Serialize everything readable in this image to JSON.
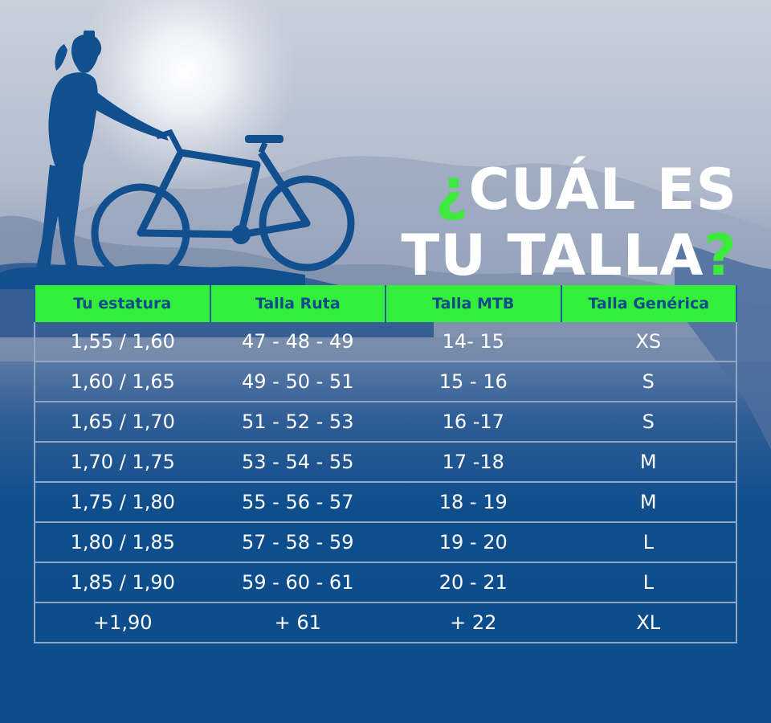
{
  "title": {
    "inverted_question_mark": "¿",
    "line1_text": "CUÁL ES",
    "line2_text": "TU TALLA",
    "question_mark": "?"
  },
  "colors": {
    "background_blue": "#0e4d8c",
    "accent_green": "#3ee93e",
    "header_text": "#0d4c89",
    "silhouette": "#124f8e"
  },
  "table": {
    "headers": [
      "Tu estatura",
      "Talla Ruta",
      "Talla MTB",
      "Talla Genérica"
    ],
    "rows": [
      [
        "1,55 / 1,60",
        "47 - 48 - 49",
        "14- 15",
        "XS"
      ],
      [
        "1,60 / 1,65",
        "49 - 50 - 51",
        "15 - 16",
        "S"
      ],
      [
        "1,65 / 1,70",
        "51 - 52 - 53",
        "16 -17",
        "S"
      ],
      [
        "1,70 / 1,75",
        "53 - 54 - 55",
        "17 -18",
        "M"
      ],
      [
        "1,75 / 1,80",
        "55 - 56 - 57",
        "18 - 19",
        "M"
      ],
      [
        "1,80 / 1,85",
        "57 - 58 - 59",
        "19 - 20",
        "L"
      ],
      [
        "1,85 / 1,90",
        "59 - 60 - 61",
        "20 - 21",
        "L"
      ],
      [
        "+1,90",
        "+ 61",
        "+ 22",
        "XL"
      ]
    ]
  }
}
